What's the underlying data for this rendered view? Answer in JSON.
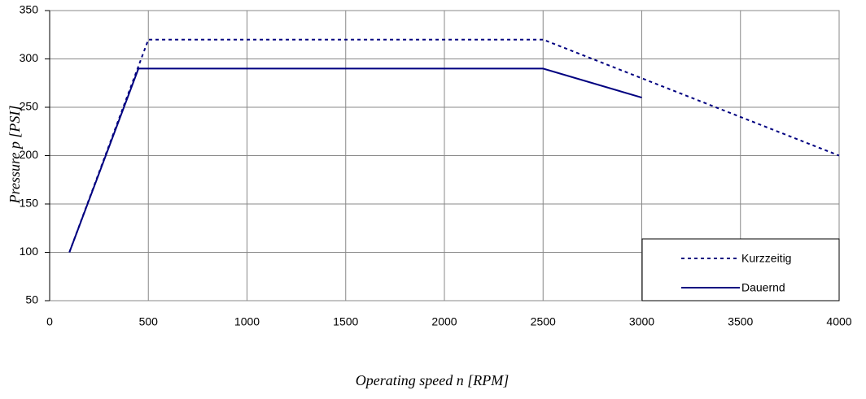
{
  "chart_data": {
    "type": "line",
    "x_label": "Operating speed n [RPM]",
    "y_label": "Pressure p [PSI]",
    "xlim": [
      0,
      4000
    ],
    "xticks": [
      0,
      500,
      1000,
      1500,
      2000,
      2500,
      3000,
      3500,
      4000
    ],
    "ylim": [
      50,
      350
    ],
    "yticks": [
      50,
      100,
      150,
      200,
      250,
      300,
      350
    ],
    "grid": true,
    "legend": "lower right",
    "series": [
      {
        "name": "Kurzzeitig",
        "color": "#000080",
        "dash": "dotted",
        "x": [
          100,
          500,
          2500,
          4000
        ],
        "values": [
          100,
          320,
          320,
          200
        ]
      },
      {
        "name": "Dauernd",
        "color": "#000080",
        "dash": "solid",
        "x": [
          100,
          450,
          2500,
          3000
        ],
        "values": [
          100,
          290,
          290,
          260
        ]
      }
    ]
  }
}
